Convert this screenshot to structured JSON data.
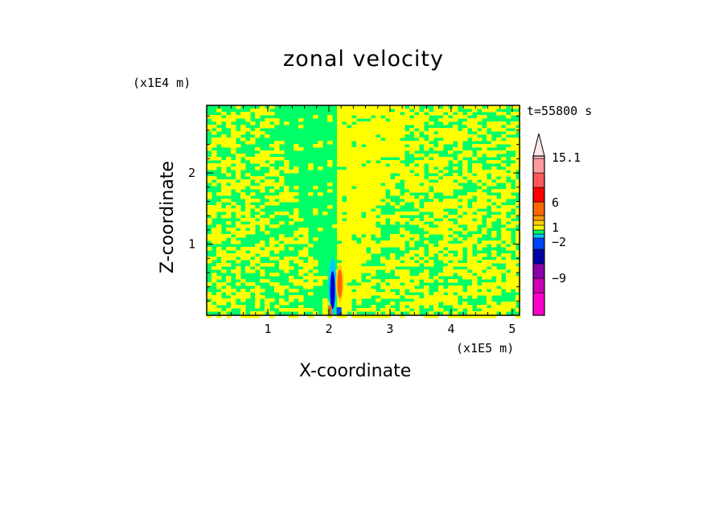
{
  "chart_data": {
    "type": "heatmap",
    "title": "zonal velocity",
    "xlabel": "X-coordinate",
    "ylabel": "Z-coordinate",
    "x_scale_label": "(x1E5 m)",
    "y_scale_label": "(x1E4 m)",
    "time_label": "t=55800 s",
    "x_ticks": [
      "1",
      "2",
      "3",
      "4",
      "5"
    ],
    "y_ticks": [
      "1",
      "2"
    ],
    "xlim": [
      0,
      5.12
    ],
    "ylim": [
      0,
      2.95
    ],
    "field_summary": {
      "background_levels": [
        "green",
        "yellow"
      ],
      "dominant_left_of_x2": "green",
      "dominant_right_of_x2": "yellow",
      "jet_core_x": 2.1,
      "jet_core_z": [
        0,
        0.8
      ],
      "jet_min_color": "#0000cc",
      "jet_max_color": "#ff6600"
    },
    "colorbar": {
      "labels": [
        "15.1",
        "6",
        "1",
        "-2",
        "-9"
      ],
      "colors": [
        "#ff00cc",
        "#cc00b4",
        "#8c00a8",
        "#0000a8",
        "#0044ff",
        "#00c8ff",
        "#00ff66",
        "#ffff00",
        "#ffd200",
        "#ff9900",
        "#ff6600",
        "#ff0000",
        "#ff5a5a",
        "#ff9aa0",
        "#ffc8c8",
        "#ffe6e6"
      ]
    }
  }
}
